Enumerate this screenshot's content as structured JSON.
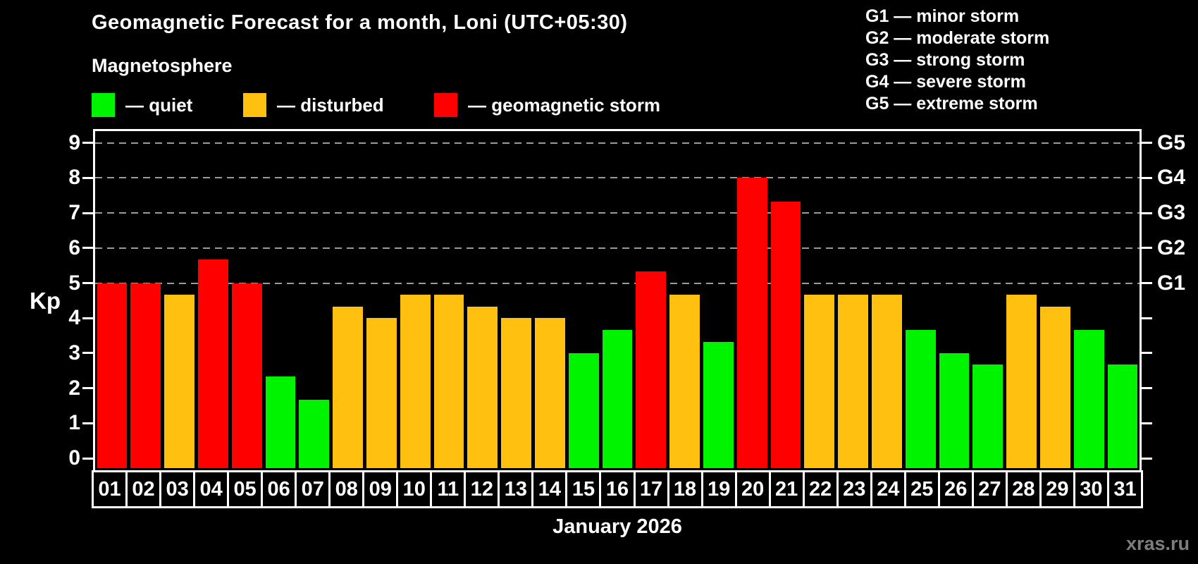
{
  "title": "Geomagnetic Forecast for a month, Loni (UTC+05:30)",
  "subtitle": "Magnetosphere",
  "legend": {
    "quiet_label": "— quiet",
    "disturbed_label": "— disturbed",
    "storm_label": "— geomagnetic storm"
  },
  "gscale_legend": [
    "G1 — minor storm",
    "G2 — moderate storm",
    "G3 — strong storm",
    "G4 — severe storm",
    "G5 — extreme storm"
  ],
  "colors": {
    "quiet": "#00f400",
    "disturbed": "#ffc010",
    "storm": "#ff0000",
    "background": "#000000",
    "grid": "#9a9a9a",
    "axis": "#ffffff",
    "watermark": "#7d7d7d"
  },
  "axes": {
    "kp_label": "Kp",
    "left_tick_values": [
      0,
      1,
      2,
      3,
      4,
      5,
      6,
      7,
      8,
      9
    ],
    "right_g_labels": [
      {
        "kp": 9,
        "label": "G5"
      },
      {
        "kp": 8,
        "label": "G4"
      },
      {
        "kp": 7,
        "label": "G3"
      },
      {
        "kp": 6,
        "label": "G2"
      },
      {
        "kp": 5,
        "label": "G1"
      }
    ]
  },
  "month_label": "January 2026",
  "watermark": "xras.ru",
  "chart_data": {
    "type": "bar",
    "title": "Geomagnetic Forecast for a month, Loni (UTC+05:30)",
    "xlabel": "January 2026",
    "ylabel": "Kp",
    "ylim": [
      0,
      9.4
    ],
    "grid": "dashed horizontal at Kp 5,6,7,8,9 (G1–G5 levels)",
    "legend_position": "top",
    "categories": [
      "01",
      "02",
      "03",
      "04",
      "05",
      "06",
      "07",
      "08",
      "09",
      "10",
      "11",
      "12",
      "13",
      "14",
      "15",
      "16",
      "17",
      "18",
      "19",
      "20",
      "21",
      "22",
      "23",
      "24",
      "25",
      "26",
      "27",
      "28",
      "29",
      "30",
      "31"
    ],
    "values": [
      5.0,
      5.0,
      4.67,
      5.67,
      5.0,
      2.33,
      1.67,
      4.33,
      4.0,
      4.67,
      4.67,
      4.33,
      4.0,
      4.0,
      3.0,
      3.67,
      5.33,
      4.67,
      3.33,
      8.0,
      7.33,
      4.67,
      4.67,
      4.67,
      3.67,
      3.0,
      2.67,
      4.67,
      4.33,
      3.67,
      2.67
    ],
    "statuses": [
      "storm",
      "storm",
      "disturbed",
      "storm",
      "storm",
      "quiet",
      "quiet",
      "disturbed",
      "disturbed",
      "disturbed",
      "disturbed",
      "disturbed",
      "disturbed",
      "disturbed",
      "quiet",
      "quiet",
      "storm",
      "disturbed",
      "quiet",
      "storm",
      "storm",
      "disturbed",
      "disturbed",
      "disturbed",
      "quiet",
      "quiet",
      "quiet",
      "disturbed",
      "disturbed",
      "quiet",
      "quiet"
    ]
  }
}
